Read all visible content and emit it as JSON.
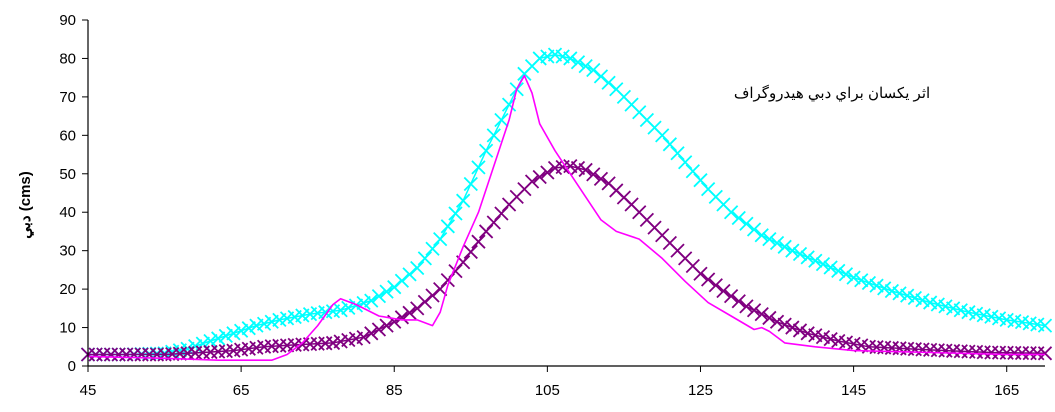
{
  "chart_data": {
    "type": "line",
    "title": "",
    "xlabel": "",
    "ylabel": "(cms) دبي",
    "annotation": "اثر يكسان براي دبي هيدروگراف",
    "xlim": [
      45,
      170
    ],
    "ylim": [
      0,
      90
    ],
    "xticks": [
      45,
      65,
      85,
      105,
      125,
      145,
      165
    ],
    "yticks": [
      0,
      10,
      20,
      30,
      40,
      50,
      60,
      70,
      80,
      90
    ],
    "grid": false,
    "legend": "none",
    "series": [
      {
        "color": "#00ffff",
        "marker": "x",
        "points": [
          [
            45,
            3
          ],
          [
            50,
            3
          ],
          [
            55,
            3.3
          ],
          [
            58,
            4.5
          ],
          [
            61,
            6.5
          ],
          [
            64,
            8.5
          ],
          [
            67,
            10.5
          ],
          [
            70,
            12
          ],
          [
            74,
            13.5
          ],
          [
            78,
            14.5
          ],
          [
            82,
            17
          ],
          [
            85,
            20.5
          ],
          [
            88,
            25.5
          ],
          [
            91,
            33
          ],
          [
            94,
            43
          ],
          [
            97,
            56
          ],
          [
            100,
            68
          ],
          [
            102,
            76
          ],
          [
            104,
            80
          ],
          [
            106,
            81
          ],
          [
            108,
            80
          ],
          [
            111,
            77
          ],
          [
            114,
            72
          ],
          [
            117,
            66
          ],
          [
            120,
            60
          ],
          [
            123,
            53
          ],
          [
            126,
            46
          ],
          [
            129,
            40
          ],
          [
            133,
            34
          ],
          [
            137,
            30
          ],
          [
            141,
            26.5
          ],
          [
            145,
            23
          ],
          [
            150,
            19.5
          ],
          [
            155,
            16.5
          ],
          [
            160,
            14
          ],
          [
            165,
            12
          ],
          [
            170,
            10.5
          ]
        ]
      },
      {
        "color": "#800080",
        "marker": "x",
        "points": [
          [
            45,
            3
          ],
          [
            55,
            3
          ],
          [
            60,
            3.5
          ],
          [
            64,
            4
          ],
          [
            68,
            5
          ],
          [
            72,
            5.5
          ],
          [
            77,
            6
          ],
          [
            81,
            7.5
          ],
          [
            85,
            11.5
          ],
          [
            88,
            15
          ],
          [
            91,
            20
          ],
          [
            94,
            27
          ],
          [
            97,
            35
          ],
          [
            100,
            42
          ],
          [
            103,
            48
          ],
          [
            106,
            51.5
          ],
          [
            108,
            52
          ],
          [
            110,
            51
          ],
          [
            113,
            47.5
          ],
          [
            116,
            42
          ],
          [
            119,
            36
          ],
          [
            122,
            30
          ],
          [
            125,
            24
          ],
          [
            128,
            19.5
          ],
          [
            131,
            15.5
          ],
          [
            135,
            11.5
          ],
          [
            139,
            8.5
          ],
          [
            143,
            6.5
          ],
          [
            147,
            5
          ],
          [
            152,
            4.5
          ],
          [
            157,
            4
          ],
          [
            163,
            3.5
          ],
          [
            170,
            3.3
          ]
        ]
      },
      {
        "color": "#ff00ff",
        "marker": "none",
        "points": [
          [
            45,
            2.5
          ],
          [
            55,
            2
          ],
          [
            62,
            1.5
          ],
          [
            69,
            1.5
          ],
          [
            71,
            3
          ],
          [
            73,
            6
          ],
          [
            75,
            10.5
          ],
          [
            77,
            16
          ],
          [
            78,
            17.5
          ],
          [
            80,
            16
          ],
          [
            83,
            13
          ],
          [
            86,
            12
          ],
          [
            88,
            12
          ],
          [
            90,
            10.5
          ],
          [
            91,
            14
          ],
          [
            92,
            21
          ],
          [
            94,
            31
          ],
          [
            96,
            40
          ],
          [
            98,
            52
          ],
          [
            100,
            64
          ],
          [
            101,
            72
          ],
          [
            102,
            75.5
          ],
          [
            103,
            71
          ],
          [
            104,
            63
          ],
          [
            106,
            56
          ],
          [
            108,
            50
          ],
          [
            110,
            44
          ],
          [
            112,
            38
          ],
          [
            114,
            35
          ],
          [
            117,
            33
          ],
          [
            120,
            28
          ],
          [
            123,
            22
          ],
          [
            126,
            16.5
          ],
          [
            129,
            13
          ],
          [
            132,
            9.5
          ],
          [
            133,
            10
          ],
          [
            134,
            9
          ],
          [
            136,
            6
          ],
          [
            140,
            5
          ],
          [
            145,
            4
          ],
          [
            155,
            3.5
          ],
          [
            165,
            3
          ],
          [
            170,
            3
          ]
        ]
      }
    ]
  }
}
